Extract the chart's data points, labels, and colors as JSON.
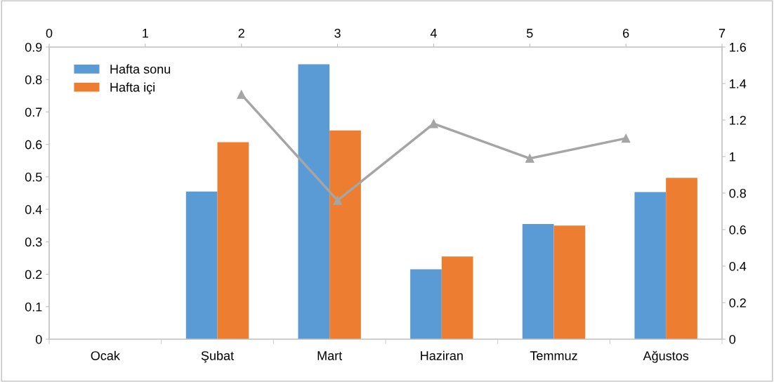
{
  "chart_data": [
    {
      "type": "bar",
      "categories": [
        "Ocak",
        "Şubat",
        "Mart",
        "Haziran",
        "Temmuz",
        "Ağustos"
      ],
      "series": [
        {
          "name": "Hafta sonu",
          "color": "#5b9bd5",
          "values": [
            null,
            0.455,
            0.847,
            0.215,
            0.355,
            0.453
          ]
        },
        {
          "name": "Hafta içi",
          "color": "#ed7d31",
          "values": [
            null,
            0.607,
            0.643,
            0.255,
            0.35,
            0.497
          ]
        }
      ],
      "ylim": [
        0,
        0.9
      ],
      "yticks": [
        0,
        0.1,
        0.2,
        0.3,
        0.4,
        0.5,
        0.6,
        0.7,
        0.8,
        0.9
      ],
      "legend": "top left",
      "grid": false
    },
    {
      "type": "line",
      "x": [
        2,
        3,
        4,
        5,
        6
      ],
      "series": [
        {
          "color": "#a5a5a5",
          "values": [
            1.34,
            0.76,
            1.18,
            0.99,
            1.1
          ]
        }
      ],
      "marker": "triangle",
      "xlim": [
        0,
        7
      ],
      "xticks": [
        0,
        1,
        2,
        3,
        4,
        5,
        6,
        7
      ],
      "ylim": [
        0,
        1.6
      ],
      "yticks": [
        0,
        0.2,
        0.4,
        0.6,
        0.8,
        1,
        1.2,
        1.4,
        1.6
      ],
      "grid": false
    }
  ]
}
